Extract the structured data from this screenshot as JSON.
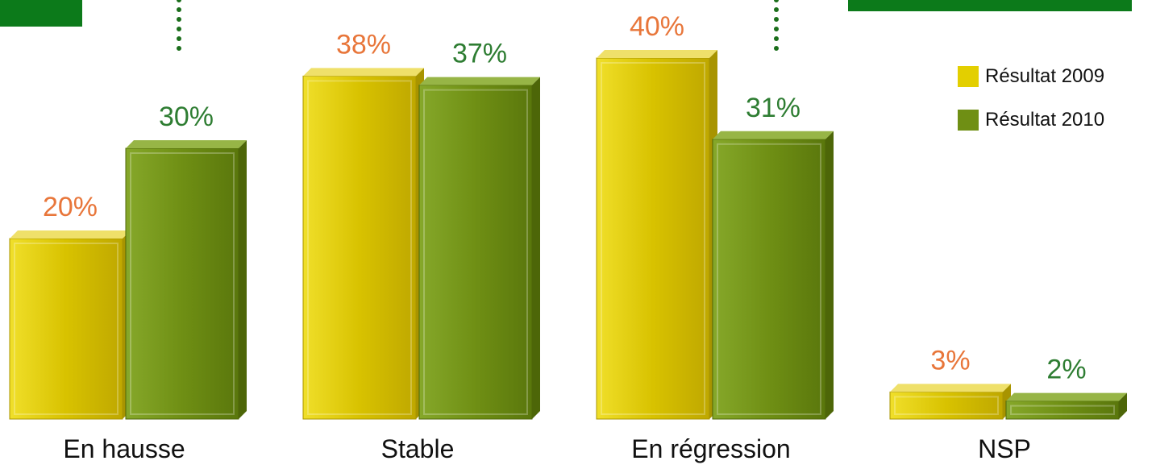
{
  "colors": {
    "series_2009": "#d4bf00",
    "series_2010": "#6f8f14",
    "label_2009": "#e8763a",
    "label_2010": "#2e7d32",
    "frame_green": "#0c7a1a",
    "dots": "#1b6e1b"
  },
  "chart_data": {
    "type": "bar",
    "categories": [
      "En hausse",
      "Stable",
      "En régression",
      "NSP"
    ],
    "series": [
      {
        "name": "Résultat 2009",
        "values": [
          20,
          38,
          40,
          3
        ],
        "labels": [
          "20%",
          "38%",
          "40%",
          "3%"
        ]
      },
      {
        "name": "Résultat 2010",
        "values": [
          30,
          37,
          31,
          2
        ],
        "labels": [
          "30%",
          "37%",
          "31%",
          "2%"
        ]
      }
    ],
    "ylim": [
      0,
      40
    ],
    "grid": false,
    "legend_position": "top-right",
    "style": "3d-bars"
  },
  "legend": {
    "items": [
      {
        "label": "Résultat 2009",
        "color_key": "series_2009"
      },
      {
        "label": "Résultat 2010",
        "color_key": "series_2010"
      }
    ]
  }
}
